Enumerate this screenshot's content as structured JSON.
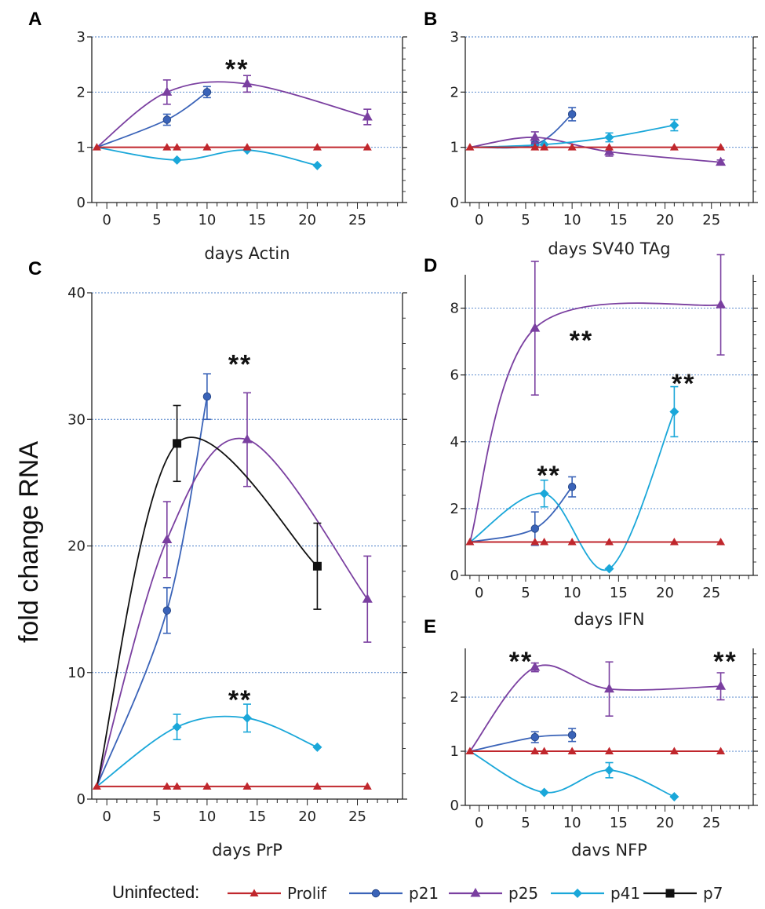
{
  "ylabel": "fold change RNA",
  "legend": {
    "title": "Uninfected:",
    "items": [
      {
        "key": "prolif",
        "label": "Prolif"
      },
      {
        "key": "p21",
        "label": "p21"
      },
      {
        "key": "p25",
        "label": "p25"
      },
      {
        "key": "p41",
        "label": "p41"
      },
      {
        "key": "p7",
        "label": "p7"
      }
    ]
  },
  "colors": {
    "prolif": "#c0272d",
    "p21": "#3a63b8",
    "p25": "#7a3fa0",
    "p41": "#1aa7d9",
    "p7": "#111111"
  },
  "chart_data": [
    {
      "letter": "A",
      "type": "line",
      "xlabel": "days Actin",
      "ylabel": "",
      "xlim": [
        -1.5,
        29.5
      ],
      "ylim": [
        0,
        3
      ],
      "xticks": [
        0,
        5,
        10,
        15,
        20,
        25
      ],
      "yticks": [
        0,
        1,
        2,
        3
      ],
      "annotations": [
        {
          "text": "**",
          "x": 13,
          "y": 2.45
        }
      ],
      "series": [
        {
          "name": "Prolif",
          "key": "prolif",
          "x": [
            -1,
            6,
            7,
            10,
            14,
            21,
            26
          ],
          "y": [
            1,
            1,
            1,
            1,
            1,
            1,
            1
          ],
          "err": []
        },
        {
          "name": "p21",
          "key": "p21",
          "x": [
            -1,
            6,
            10
          ],
          "y": [
            1,
            1.5,
            2.0
          ],
          "err": [
            0,
            0.1,
            0.1
          ]
        },
        {
          "name": "p25",
          "key": "p25",
          "x": [
            -1,
            6,
            14,
            26
          ],
          "y": [
            1,
            2.0,
            2.15,
            1.55
          ],
          "err": [
            0,
            0.22,
            0.15,
            0.14
          ]
        },
        {
          "name": "p41",
          "key": "p41",
          "x": [
            -1,
            7,
            14,
            21
          ],
          "y": [
            1,
            0.77,
            0.95,
            0.67
          ],
          "err": [
            0,
            0,
            0,
            0
          ]
        }
      ]
    },
    {
      "letter": "B",
      "type": "line",
      "xlabel": "days SV40 TAg",
      "ylabel": "",
      "xlim": [
        -1.5,
        29.5
      ],
      "ylim": [
        0,
        3
      ],
      "xticks": [
        0,
        5,
        10,
        15,
        20,
        25
      ],
      "yticks": [
        0,
        1,
        2,
        3
      ],
      "annotations": [],
      "series": [
        {
          "name": "Prolif",
          "key": "prolif",
          "x": [
            -1,
            6,
            7,
            10,
            14,
            21,
            26
          ],
          "y": [
            1,
            1,
            1,
            1,
            1,
            1,
            1
          ],
          "err": []
        },
        {
          "name": "p21",
          "key": "p21",
          "x": [
            -1,
            6,
            10
          ],
          "y": [
            1,
            1.05,
            1.6
          ],
          "err": [
            0,
            0.05,
            0.12
          ]
        },
        {
          "name": "p25",
          "key": "p25",
          "x": [
            -1,
            6,
            14,
            26
          ],
          "y": [
            1,
            1.18,
            0.92,
            0.73
          ],
          "err": [
            0,
            0.1,
            0.08,
            0.04
          ]
        },
        {
          "name": "p41",
          "key": "p41",
          "x": [
            -1,
            7,
            14,
            21
          ],
          "y": [
            1,
            1.05,
            1.18,
            1.4
          ],
          "err": [
            0,
            0,
            0.08,
            0.1
          ]
        }
      ]
    },
    {
      "letter": "C",
      "type": "line",
      "xlabel": "days PrP",
      "ylabel": "fold change RNA",
      "xlim": [
        -1.5,
        29.5
      ],
      "ylim": [
        0,
        40
      ],
      "xticks": [
        0,
        5,
        10,
        15,
        20,
        25
      ],
      "yticks": [
        0,
        10,
        20,
        30,
        40
      ],
      "annotations": [
        {
          "text": "**",
          "x": 13.3,
          "y": 34.5
        },
        {
          "text": "**",
          "x": 13.3,
          "y": 8.0
        }
      ],
      "series": [
        {
          "name": "Prolif",
          "key": "prolif",
          "x": [
            -1,
            6,
            7,
            10,
            14,
            21,
            26
          ],
          "y": [
            1,
            1,
            1,
            1,
            1,
            1,
            1
          ],
          "err": []
        },
        {
          "name": "p21",
          "key": "p21",
          "x": [
            -1,
            6,
            10
          ],
          "y": [
            1,
            14.9,
            31.8
          ],
          "err": [
            0,
            1.8,
            1.8
          ]
        },
        {
          "name": "p25",
          "key": "p25",
          "x": [
            -1,
            6,
            14,
            26
          ],
          "y": [
            1,
            20.5,
            28.4,
            15.8
          ],
          "err": [
            0,
            3.0,
            3.7,
            3.4
          ]
        },
        {
          "name": "p41",
          "key": "p41",
          "x": [
            -1,
            7,
            14,
            21
          ],
          "y": [
            1,
            5.7,
            6.4,
            4.1
          ],
          "err": [
            0,
            1.0,
            1.1,
            0
          ]
        },
        {
          "name": "p7",
          "key": "p7",
          "x": [
            -1,
            7,
            21
          ],
          "y": [
            1,
            28.1,
            18.4
          ],
          "err": [
            0,
            3.0,
            3.4
          ]
        }
      ]
    },
    {
      "letter": "D",
      "type": "line",
      "xlabel": "days IFN",
      "ylabel": "",
      "xlim": [
        -1.5,
        29.5
      ],
      "ylim": [
        0,
        9
      ],
      "xticks": [
        0,
        5,
        10,
        15,
        20,
        25
      ],
      "yticks": [
        0,
        2,
        4,
        6,
        8
      ],
      "annotations": [
        {
          "text": "**",
          "x": 11,
          "y": 7.1
        },
        {
          "text": "**",
          "x": 22,
          "y": 5.8
        },
        {
          "text": "**",
          "x": 7.5,
          "y": 3.05
        }
      ],
      "series": [
        {
          "name": "Prolif",
          "key": "prolif",
          "x": [
            -1,
            6,
            7,
            10,
            14,
            21,
            26
          ],
          "y": [
            1,
            1,
            1,
            1,
            1,
            1,
            1
          ],
          "err": []
        },
        {
          "name": "p21",
          "key": "p21",
          "x": [
            -1,
            6,
            10
          ],
          "y": [
            1,
            1.4,
            2.65
          ],
          "err": [
            0,
            0.5,
            0.3
          ]
        },
        {
          "name": "p25",
          "key": "p25",
          "x": [
            -1,
            6,
            26
          ],
          "y": [
            1,
            7.4,
            8.1
          ],
          "err": [
            0,
            2.0,
            1.5
          ]
        },
        {
          "name": "p41",
          "key": "p41",
          "x": [
            -1,
            7,
            14,
            21
          ],
          "y": [
            1,
            2.45,
            0.2,
            4.9
          ],
          "err": [
            0,
            0.4,
            0,
            0.75
          ]
        }
      ]
    },
    {
      "letter": "E",
      "type": "line",
      "xlabel": "davs NFP",
      "ylabel": "",
      "xlim": [
        -1.5,
        29.5
      ],
      "ylim": [
        0,
        2.9
      ],
      "xticks": [
        0,
        5,
        10,
        15,
        20,
        25
      ],
      "yticks": [
        0,
        1,
        2
      ],
      "annotations": [
        {
          "text": "**",
          "x": 4.5,
          "y": 2.7
        },
        {
          "text": "**",
          "x": 26.5,
          "y": 2.7
        }
      ],
      "series": [
        {
          "name": "Prolif",
          "key": "prolif",
          "x": [
            -1,
            6,
            7,
            10,
            14,
            21,
            26
          ],
          "y": [
            1,
            1,
            1,
            1,
            1,
            1,
            1
          ],
          "err": []
        },
        {
          "name": "p21",
          "key": "p21",
          "x": [
            -1,
            6,
            10
          ],
          "y": [
            1,
            1.26,
            1.3
          ],
          "err": [
            0,
            0.1,
            0.12
          ]
        },
        {
          "name": "p25",
          "key": "p25",
          "x": [
            -1,
            6,
            14,
            26
          ],
          "y": [
            1,
            2.55,
            2.15,
            2.2
          ],
          "err": [
            0,
            0.08,
            0.5,
            0.25
          ]
        },
        {
          "name": "p41",
          "key": "p41",
          "x": [
            -1,
            7,
            14,
            21
          ],
          "y": [
            1,
            0.24,
            0.65,
            0.16
          ],
          "err": [
            0,
            0,
            0.14,
            0
          ]
        }
      ]
    }
  ]
}
